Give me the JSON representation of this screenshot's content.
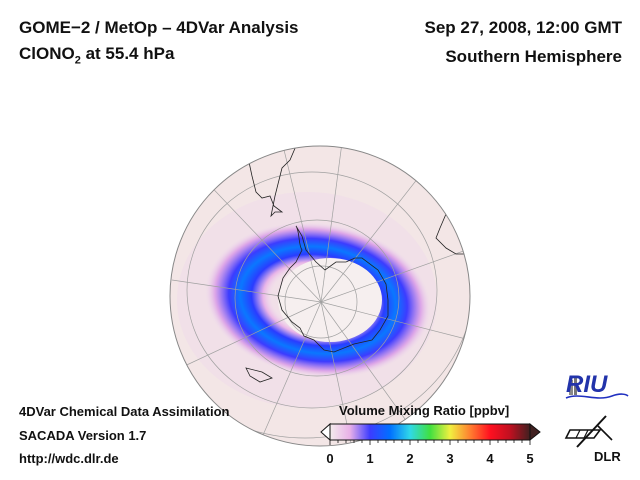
{
  "header": {
    "title": "GOME−2 / MetOp – 4DVar Analysis",
    "species_prefix": "ClONO",
    "species_subscript": "2",
    "species_suffix": " at 55.4 hPa",
    "date": "Sep 27, 2008, 12:00 GMT",
    "region": "Southern Hemisphere"
  },
  "footer": {
    "line1": "4DVar Chemical Data Assimilation",
    "line2": "SACADA Version 1.7",
    "line3": "http://wdc.dlr.de"
  },
  "colorbar": {
    "title": "Volume Mixing Ratio [ppbv]",
    "ticks": [
      "0",
      "1",
      "2",
      "3",
      "4",
      "5"
    ],
    "range": [
      0,
      5
    ],
    "colors": [
      "#f4ecec",
      "#e8b0e8",
      "#3c3cff",
      "#0070ff",
      "#30d8e8",
      "#40e040",
      "#f0f040",
      "#ff8030",
      "#ff1020",
      "#c01020",
      "#402020"
    ],
    "extend": "both"
  },
  "map": {
    "projection": "orthographic south-polar",
    "background_color": "#f3e6e6",
    "field": "ClONO2 collar ring around Antarctic vortex, peak ~1 ppbv"
  },
  "logos": {
    "riu": "RIU",
    "dlr": "DLR"
  }
}
